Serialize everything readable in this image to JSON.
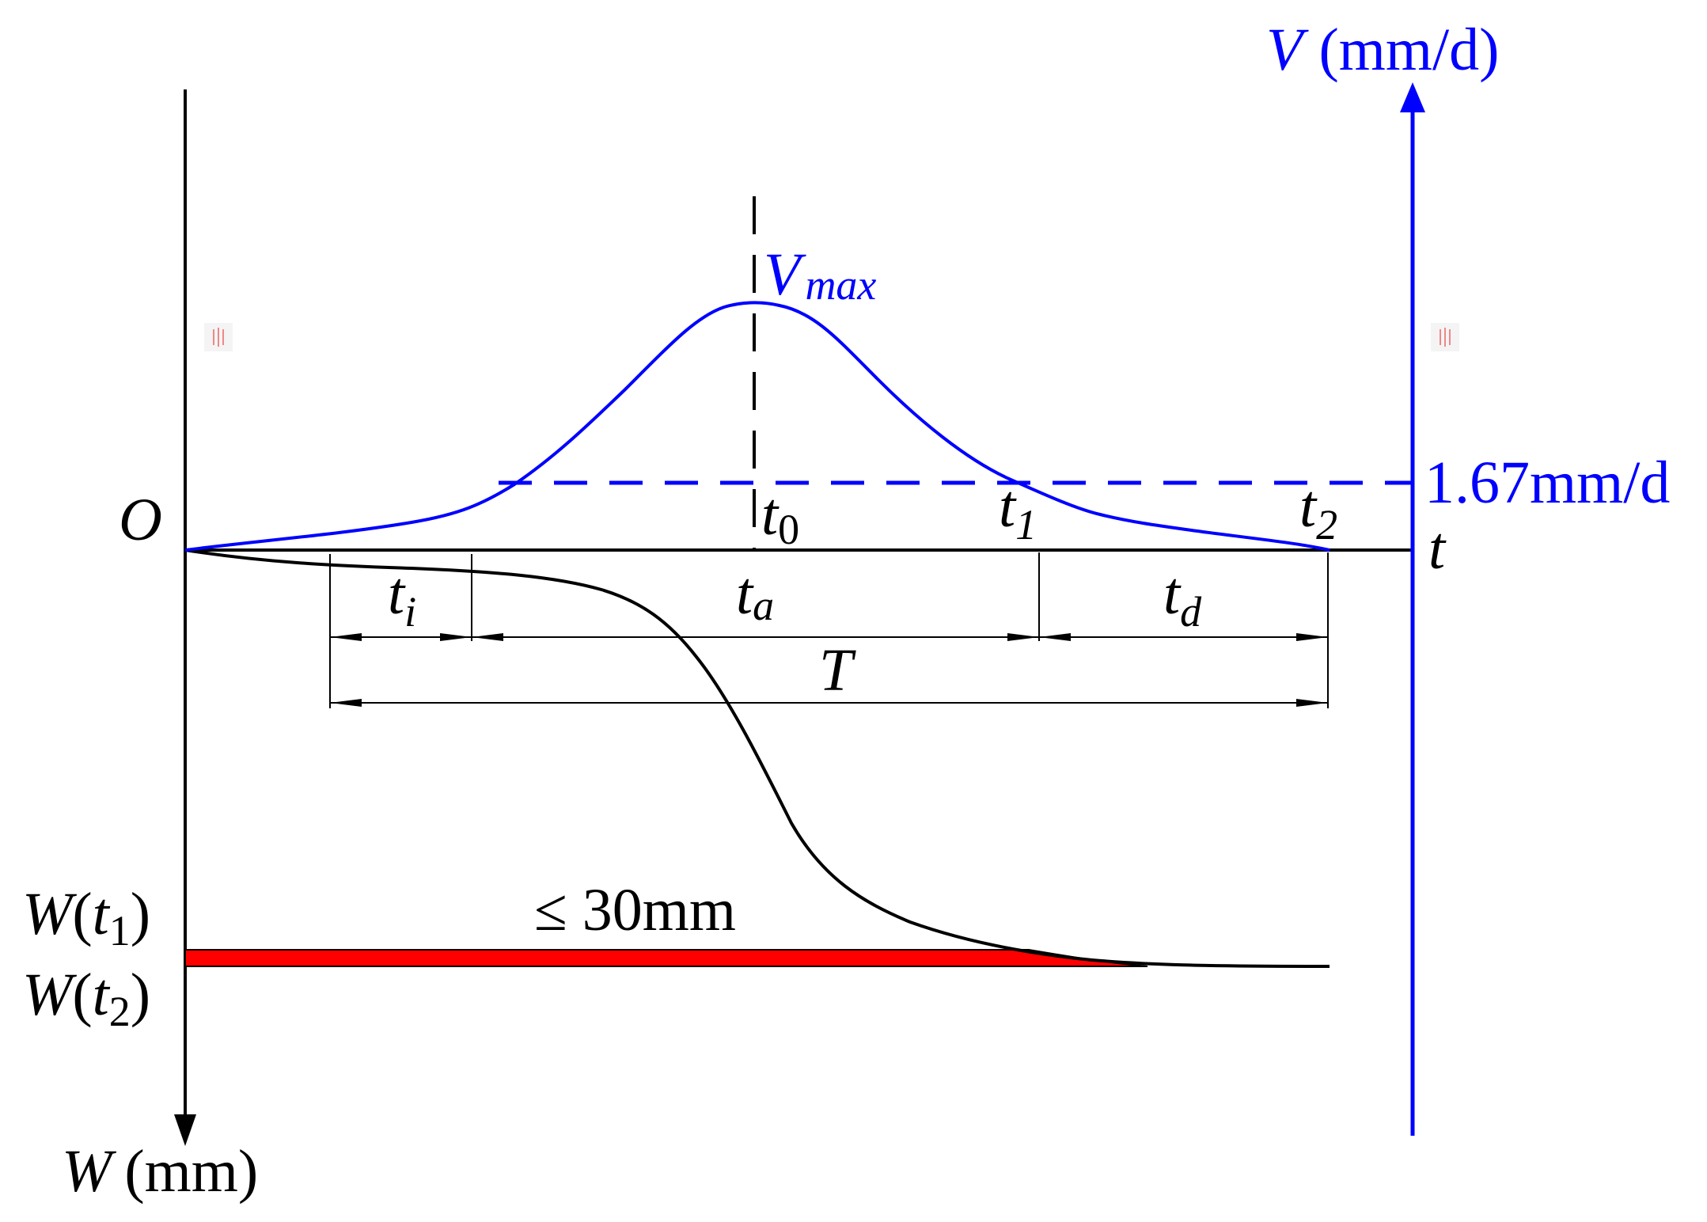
{
  "labels": {
    "origin": "O",
    "v_axis_var": "V",
    "v_axis_unit": "(mm/d)",
    "t_axis": "t",
    "w_axis_var": "W",
    "w_axis_unit": "(mm)",
    "vmax_main": "V",
    "vmax_sub": "max",
    "t0_main": "t",
    "t0_sub": "0",
    "t1_main": "t",
    "t1_sub": "1",
    "t2_main": "t",
    "t2_sub": "2",
    "ti_main": "t",
    "ti_sub": "i",
    "ta_main": "t",
    "ta_sub": "a",
    "td_main": "t",
    "td_sub": "d",
    "T": "T",
    "threshold_v": "1.67mm/d",
    "threshold_w": "≤ 30mm",
    "wt1_main": "W",
    "wt1_open": "(",
    "wt1_t": "t",
    "wt1_sub": "1",
    "wt1_close": ")",
    "wt2_main": "W",
    "wt2_open": "(",
    "wt2_t": "t",
    "wt2_sub": "2",
    "wt2_close": ")"
  },
  "colors": {
    "velocity": "#0000ff",
    "displacement": "#000000",
    "highlight": "#ff0000"
  }
}
